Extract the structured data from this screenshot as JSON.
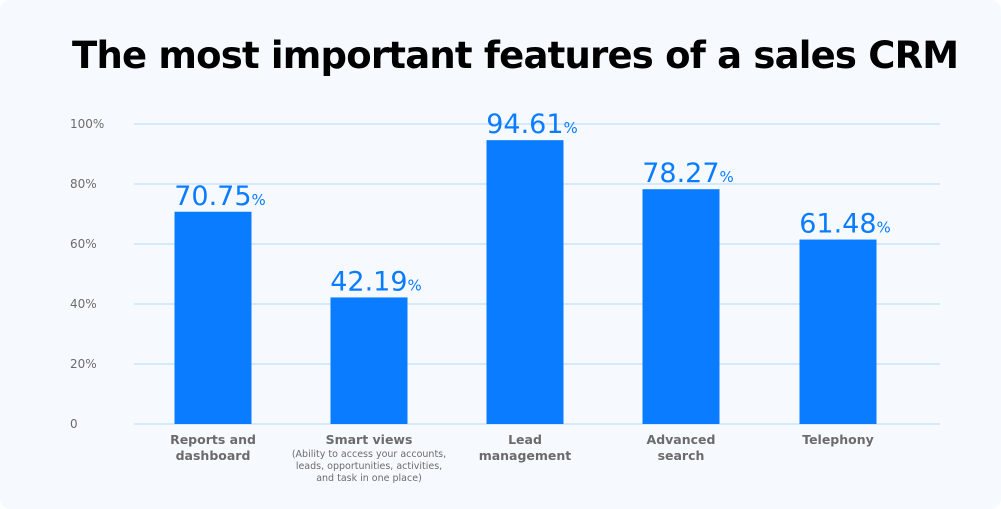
{
  "chart_data": {
    "type": "bar",
    "title": "The most important features of a sales CRM",
    "xlabel": "",
    "ylabel": "",
    "ylim": [
      0,
      100
    ],
    "yticks": [
      0,
      20,
      40,
      60,
      80,
      100
    ],
    "ytick_labels": [
      "0",
      "20%",
      "40%",
      "60%",
      "80%",
      "100%"
    ],
    "grid": true,
    "categories": [
      {
        "label": "Reports and dashboard",
        "lines": [
          "Reports and",
          "dashboard"
        ],
        "sub": []
      },
      {
        "label": "Smart views",
        "lines": [
          "Smart views"
        ],
        "sub": [
          "(Ability to access your accounts,",
          "leads, opportunities, activities,",
          "and task in one place)"
        ]
      },
      {
        "label": "Lead management",
        "lines": [
          "Lead",
          "management"
        ],
        "sub": []
      },
      {
        "label": "Advanced search",
        "lines": [
          "Advanced",
          "search"
        ],
        "sub": []
      },
      {
        "label": "Telephony",
        "lines": [
          "Telephony"
        ],
        "sub": []
      }
    ],
    "values": [
      70.75,
      42.19,
      94.61,
      78.27,
      61.48
    ],
    "value_labels": [
      "70.75",
      "42.19",
      "94.61",
      "78.27",
      "61.48"
    ],
    "value_suffix": "%",
    "colors": {
      "bar": "#0a7cff",
      "grid": "#d6e8fb",
      "label": "#0a7cff",
      "axis_text": "#6b6b6b"
    }
  }
}
